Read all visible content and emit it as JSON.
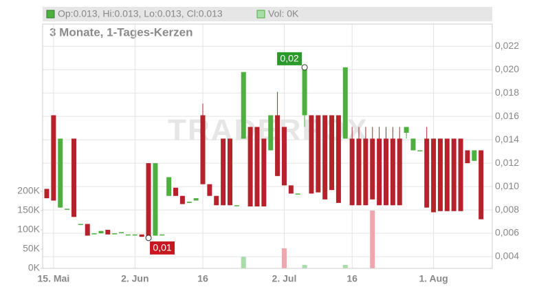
{
  "chart_data": {
    "type": "candlestick",
    "legend": {
      "ohlc": "Op:0.013, Hi:0.013, Lo:0.013, Cl:0.013",
      "volume": "Vol: 0K"
    },
    "subtitle": "3 Monate, 1-Tages-Kerzen",
    "watermark": "TRADERFOX",
    "annotations": {
      "high": "0,02",
      "low": "0,01"
    },
    "up_color": "#4caf3e",
    "down_color": "#b5222b",
    "volume_up_color": "#a8dca8",
    "volume_down_color": "#f0a6ad",
    "grid": true,
    "categories": [
      null,
      "15. Mai",
      null,
      null,
      null,
      null,
      null,
      null,
      null,
      null,
      null,
      null,
      null,
      "2. Jun",
      null,
      null,
      null,
      null,
      null,
      null,
      null,
      null,
      null,
      "16",
      null,
      null,
      null,
      null,
      null,
      null,
      null,
      null,
      null,
      null,
      null,
      "2. Jul",
      null,
      null,
      null,
      null,
      null,
      null,
      null,
      null,
      null,
      "16",
      null,
      null,
      null,
      null,
      null,
      null,
      null,
      null,
      null,
      null,
      null,
      "1. Aug",
      null,
      null,
      null,
      null,
      null,
      null,
      null
    ],
    "open": [
      0.0098,
      0.0161,
      0.0082,
      0.0081,
      0.0141,
      0.0068,
      0.0068,
      0.006,
      0.006,
      0.0063,
      0.006,
      0.0061,
      0.0059,
      0.0059,
      0.0059,
      0.012,
      0.0058,
      0.0059,
      0.0092,
      0.0099,
      0.0092,
      0.0086,
      0.0088,
      0.0161,
      0.0102,
      0.0092,
      0.0141,
      0.0141,
      0.0084,
      0.0141,
      0.0151,
      0.0151,
      0.0141,
      0.0131,
      0.0161,
      0.0151,
      0.0101,
      0.0094,
      0.0161,
      0.0161,
      0.0161,
      0.0161,
      0.0161,
      0.0161,
      0.0141,
      0.0141,
      0.0141,
      0.0141,
      0.0141,
      0.0141,
      0.0141,
      0.0141,
      0.0141,
      0.0146,
      0.0131,
      0.0131,
      0.0141,
      0.0141,
      0.0141,
      0.0141,
      0.0141,
      0.0141,
      0.0131,
      0.0122,
      0.0131
    ],
    "high": [
      0.0098,
      0.0161,
      0.0141,
      0.0081,
      0.0141,
      0.0068,
      0.0068,
      0.006,
      0.0062,
      0.0063,
      0.006,
      0.0061,
      0.0059,
      0.0059,
      0.0059,
      0.012,
      0.012,
      0.0059,
      0.0108,
      0.0099,
      0.0092,
      0.0087,
      0.009,
      0.0171,
      0.0102,
      0.0092,
      0.0141,
      0.0141,
      0.0084,
      0.0198,
      0.0151,
      0.0151,
      0.0141,
      0.0161,
      0.0181,
      0.0151,
      0.0101,
      0.0094,
      0.0202,
      0.0161,
      0.0161,
      0.0161,
      0.0161,
      0.0161,
      0.0202,
      0.0151,
      0.0151,
      0.0151,
      0.0151,
      0.0151,
      0.0151,
      0.0151,
      0.0151,
      0.0151,
      0.0141,
      0.0131,
      0.0151,
      0.0141,
      0.0141,
      0.0141,
      0.0141,
      0.0141,
      0.0131,
      0.0131,
      0.0131
    ],
    "low": [
      0.009,
      0.0088,
      0.0082,
      0.0081,
      0.0074,
      0.0068,
      0.0058,
      0.006,
      0.006,
      0.0059,
      0.006,
      0.0061,
      0.0059,
      0.0059,
      0.0057,
      0.0056,
      0.0058,
      0.0059,
      0.0092,
      0.0092,
      0.0085,
      0.0086,
      0.0088,
      0.0102,
      0.0092,
      0.0084,
      0.0084,
      0.0084,
      0.0084,
      0.0141,
      0.0083,
      0.0083,
      0.0083,
      0.0131,
      0.0109,
      0.0101,
      0.0094,
      0.0094,
      0.0151,
      0.0094,
      0.0095,
      0.0089,
      0.0097,
      0.0086,
      0.0141,
      0.0084,
      0.0084,
      0.0084,
      0.0089,
      0.0084,
      0.0084,
      0.0084,
      0.0084,
      0.0141,
      0.0131,
      0.0131,
      0.0082,
      0.0078,
      0.0079,
      0.0079,
      0.0079,
      0.0079,
      0.012,
      0.0122,
      0.0072
    ],
    "close": [
      0.009,
      0.0088,
      0.0141,
      0.0081,
      0.0074,
      0.0068,
      0.0058,
      0.006,
      0.0062,
      0.0059,
      0.006,
      0.0061,
      0.0059,
      0.0059,
      0.0057,
      0.0056,
      0.012,
      0.0059,
      0.0108,
      0.0092,
      0.0085,
      0.0087,
      0.009,
      0.0102,
      0.0092,
      0.0084,
      0.0084,
      0.0084,
      0.0084,
      0.0198,
      0.0083,
      0.0083,
      0.0083,
      0.0161,
      0.0109,
      0.0101,
      0.0094,
      0.0094,
      0.0202,
      0.0094,
      0.0095,
      0.0089,
      0.0097,
      0.0086,
      0.0202,
      0.0084,
      0.0084,
      0.0084,
      0.0089,
      0.0084,
      0.0084,
      0.0084,
      0.0084,
      0.0151,
      0.0141,
      0.0131,
      0.0082,
      0.0078,
      0.0079,
      0.0079,
      0.0079,
      0.0079,
      0.012,
      0.0131,
      0.0072
    ],
    "volume": [
      0,
      0,
      0,
      0,
      0,
      0,
      0,
      0,
      0,
      0,
      0,
      0,
      0,
      0,
      0,
      0,
      0,
      0,
      0,
      0,
      0,
      0,
      0,
      0,
      0,
      0,
      0,
      0,
      0,
      30000,
      0,
      0,
      0,
      0,
      0,
      52000,
      0,
      0,
      9000,
      0,
      0,
      0,
      0,
      0,
      9000,
      0,
      0,
      0,
      150000,
      0,
      0,
      0,
      0,
      0,
      0,
      0,
      0,
      0,
      0,
      0,
      0,
      0,
      0,
      0,
      0
    ],
    "ylim": [
      0.003,
      0.0239
    ],
    "yticks": [
      {
        "value": 0.004,
        "label": "0,004"
      },
      {
        "value": 0.006,
        "label": "0,006"
      },
      {
        "value": 0.008,
        "label": "0,008"
      },
      {
        "value": 0.01,
        "label": "0,010"
      },
      {
        "value": 0.012,
        "label": "0,012"
      },
      {
        "value": 0.014,
        "label": "0,014"
      },
      {
        "value": 0.016,
        "label": "0,016"
      },
      {
        "value": 0.018,
        "label": "0,018"
      },
      {
        "value": 0.02,
        "label": "0,020"
      },
      {
        "value": 0.022,
        "label": "0,022"
      }
    ],
    "y2lim": [
      0,
      634000
    ],
    "y2ticks": [
      {
        "value": 0,
        "label": "0K"
      },
      {
        "value": 50000,
        "label": "50K"
      },
      {
        "value": 100000,
        "label": "100K"
      },
      {
        "value": 150000,
        "label": "150K"
      },
      {
        "value": 200000,
        "label": "200K"
      }
    ]
  }
}
